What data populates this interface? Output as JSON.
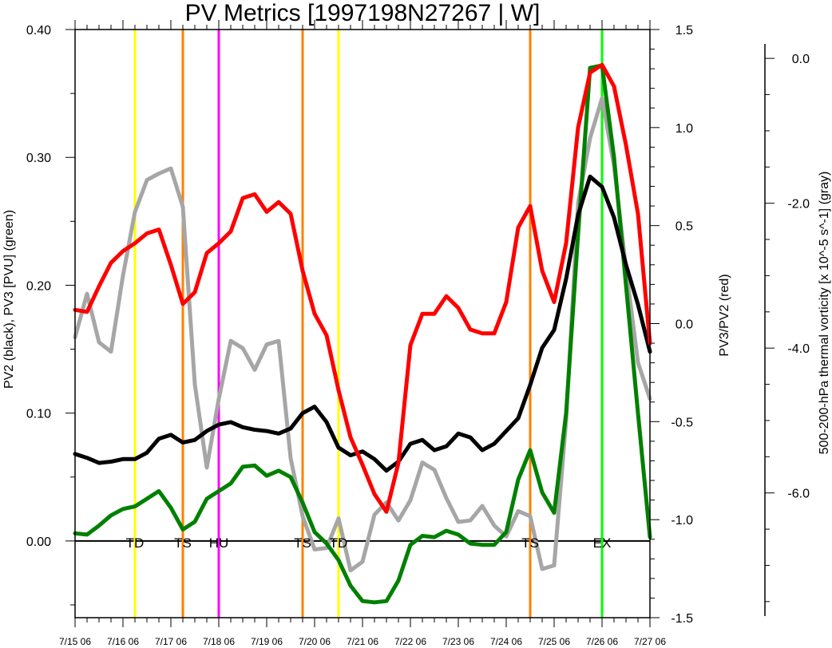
{
  "chart_data": {
    "type": "line",
    "title": "PV Metrics [1997198N27267 | W]",
    "axes": {
      "left": {
        "label": "PV2 (black), PV3 [PVU] (green)",
        "range": [
          -0.06,
          0.4
        ],
        "ticks": [
          "0.00",
          "0.10",
          "0.20",
          "0.30",
          "0.40"
        ],
        "tick_values": [
          0,
          0.1,
          0.2,
          0.3,
          0.4
        ]
      },
      "right": {
        "label": "PV3/PV2 (red)",
        "range": [
          -1.5,
          1.5
        ],
        "ticks": [
          "-1.5",
          "-1.0",
          "-0.5",
          "0.0",
          "0.5",
          "1.0",
          "1.5"
        ],
        "tick_values": [
          -1.5,
          -1.0,
          -0.5,
          0.0,
          0.5,
          1.0,
          1.5
        ]
      },
      "far_right": {
        "label": "500-200-hPa thermal vorticity [x 10^-5 s^-1] (gray)",
        "range": [
          -7.7,
          0.2
        ],
        "ticks": [
          "0.0",
          "-2.0",
          "-4.0",
          "-6.0"
        ],
        "tick_values": [
          0,
          -2,
          -4,
          -6
        ]
      },
      "x": {
        "range": [
          0,
          12
        ],
        "ticks": [
          "7/15 06",
          "7/16 06",
          "7/17 06",
          "7/18 06",
          "7/19 06",
          "7/20 06",
          "7/21 06",
          "7/22 06",
          "7/23 06",
          "7/24 06",
          "7/25 06",
          "7/26 06",
          "7/27 06"
        ]
      }
    },
    "zero_line": 0,
    "series": [
      {
        "name": "PV2",
        "color": "#000000",
        "axis": "left",
        "x": [
          0,
          0.25,
          0.5,
          0.75,
          1,
          1.25,
          1.5,
          1.75,
          2,
          2.25,
          2.5,
          2.75,
          3,
          3.25,
          3.5,
          3.75,
          4,
          4.25,
          4.5,
          4.75,
          5,
          5.25,
          5.5,
          5.75,
          6,
          6.25,
          6.5,
          6.75,
          7,
          7.25,
          7.5,
          7.75,
          8,
          8.25,
          8.5,
          8.75,
          9,
          9.25,
          9.5,
          9.75,
          10,
          10.25,
          10.5,
          10.75,
          11,
          11.25,
          11.5,
          11.75,
          12
        ],
        "values": [
          0.068,
          0.065,
          0.061,
          0.062,
          0.064,
          0.064,
          0.069,
          0.08,
          0.083,
          0.077,
          0.079,
          0.086,
          0.091,
          0.093,
          0.089,
          0.087,
          0.086,
          0.084,
          0.088,
          0.1,
          0.105,
          0.093,
          0.073,
          0.067,
          0.07,
          0.064,
          0.055,
          0.062,
          0.076,
          0.079,
          0.071,
          0.074,
          0.084,
          0.081,
          0.071,
          0.076,
          0.086,
          0.096,
          0.122,
          0.151,
          0.165,
          0.205,
          0.255,
          0.285,
          0.277,
          0.253,
          0.216,
          0.185,
          0.148
        ]
      },
      {
        "name": "PV3",
        "color": "#008000",
        "axis": "left",
        "x": [
          0,
          0.25,
          0.5,
          0.75,
          1,
          1.25,
          1.5,
          1.75,
          2,
          2.25,
          2.5,
          2.75,
          3,
          3.25,
          3.5,
          3.75,
          4,
          4.25,
          4.5,
          4.75,
          5,
          5.25,
          5.5,
          5.75,
          6,
          6.25,
          6.5,
          6.75,
          7,
          7.25,
          7.5,
          7.75,
          8,
          8.25,
          8.5,
          8.75,
          9,
          9.25,
          9.5,
          9.75,
          10,
          10.25,
          10.5,
          10.75,
          11,
          11.25,
          11.5,
          11.75,
          12
        ],
        "values": [
          0.006,
          0.005,
          0.012,
          0.02,
          0.025,
          0.027,
          0.033,
          0.039,
          0.026,
          0.009,
          0.015,
          0.033,
          0.039,
          0.045,
          0.058,
          0.059,
          0.051,
          0.055,
          0.05,
          0.03,
          0.007,
          -0.002,
          -0.015,
          -0.035,
          -0.047,
          -0.048,
          -0.047,
          -0.031,
          -0.003,
          0.004,
          0.003,
          0.008,
          0.005,
          -0.002,
          -0.003,
          -0.003,
          0.007,
          0.048,
          0.071,
          0.038,
          0.022,
          0.1,
          0.24,
          0.37,
          0.372,
          0.3,
          0.2,
          0.1,
          0.003
        ]
      },
      {
        "name": "PV3/PV2",
        "color": "#ff0000",
        "axis": "right",
        "x": [
          0,
          0.25,
          0.5,
          0.75,
          1,
          1.25,
          1.5,
          1.75,
          2,
          2.25,
          2.5,
          2.75,
          3,
          3.25,
          3.5,
          3.75,
          4,
          4.25,
          4.5,
          4.75,
          5,
          5.25,
          5.5,
          5.75,
          6,
          6.25,
          6.5,
          6.75,
          7,
          7.25,
          7.5,
          7.75,
          8,
          8.25,
          8.5,
          8.75,
          9,
          9.25,
          9.5,
          9.75,
          10,
          10.25,
          10.5,
          10.75,
          11,
          11.25,
          11.5,
          11.75,
          12
        ],
        "values": [
          0.07,
          0.06,
          0.19,
          0.31,
          0.37,
          0.41,
          0.46,
          0.48,
          0.3,
          0.1,
          0.16,
          0.36,
          0.41,
          0.47,
          0.64,
          0.66,
          0.57,
          0.62,
          0.56,
          0.27,
          0.05,
          -0.06,
          -0.34,
          -0.58,
          -0.72,
          -0.87,
          -0.96,
          -0.71,
          -0.11,
          0.05,
          0.05,
          0.14,
          0.08,
          -0.03,
          -0.05,
          -0.05,
          0.11,
          0.49,
          0.6,
          0.27,
          0.11,
          0.41,
          1.0,
          1.28,
          1.32,
          1.21,
          0.91,
          0.56,
          -0.1
        ]
      },
      {
        "name": "thermal vorticity",
        "color": "#a6a6a6",
        "axis": "far_right",
        "x": [
          0,
          0.25,
          0.5,
          0.75,
          1,
          1.25,
          1.5,
          1.75,
          2,
          2.25,
          2.5,
          2.75,
          3,
          3.25,
          3.5,
          3.75,
          4,
          4.25,
          4.5,
          4.75,
          5,
          5.25,
          5.5,
          5.75,
          6,
          6.25,
          6.5,
          6.75,
          7,
          7.25,
          7.5,
          7.75,
          8,
          8.25,
          8.5,
          8.75,
          9,
          9.25,
          9.5,
          9.75,
          10,
          10.25,
          10.5,
          10.75,
          11,
          11.25,
          11.5,
          11.75,
          12
        ],
        "values": [
          -3.85,
          -3.25,
          -3.92,
          -4.05,
          -3.0,
          -2.12,
          -1.68,
          -1.59,
          -1.52,
          -2.05,
          -4.5,
          -5.65,
          -4.7,
          -3.9,
          -4.0,
          -4.3,
          -3.95,
          -3.9,
          -5.52,
          -6.32,
          -6.78,
          -6.76,
          -6.35,
          -7.07,
          -6.95,
          -6.3,
          -6.13,
          -6.38,
          -6.1,
          -5.58,
          -5.68,
          -6.07,
          -6.4,
          -6.38,
          -6.18,
          -6.45,
          -6.6,
          -6.25,
          -6.32,
          -7.05,
          -7.0,
          -5.0,
          -2.0,
          -1.1,
          -0.55,
          -1.48,
          -2.9,
          -4.2,
          -4.7
        ]
      }
    ],
    "events": [
      {
        "label": "TD",
        "x": 1.25,
        "color": "#ffff00"
      },
      {
        "label": "TS",
        "x": 2.25,
        "color": "#ff8000"
      },
      {
        "label": "HU",
        "x": 3.0,
        "color": "#ff00ff"
      },
      {
        "label": "TS",
        "x": 4.75,
        "color": "#ff8000"
      },
      {
        "label": "TD",
        "x": 5.5,
        "color": "#ffff00"
      },
      {
        "label": "TS",
        "x": 9.5,
        "color": "#ff8000"
      },
      {
        "label": "EX",
        "x": 11.0,
        "color": "#00ff00"
      }
    ]
  }
}
